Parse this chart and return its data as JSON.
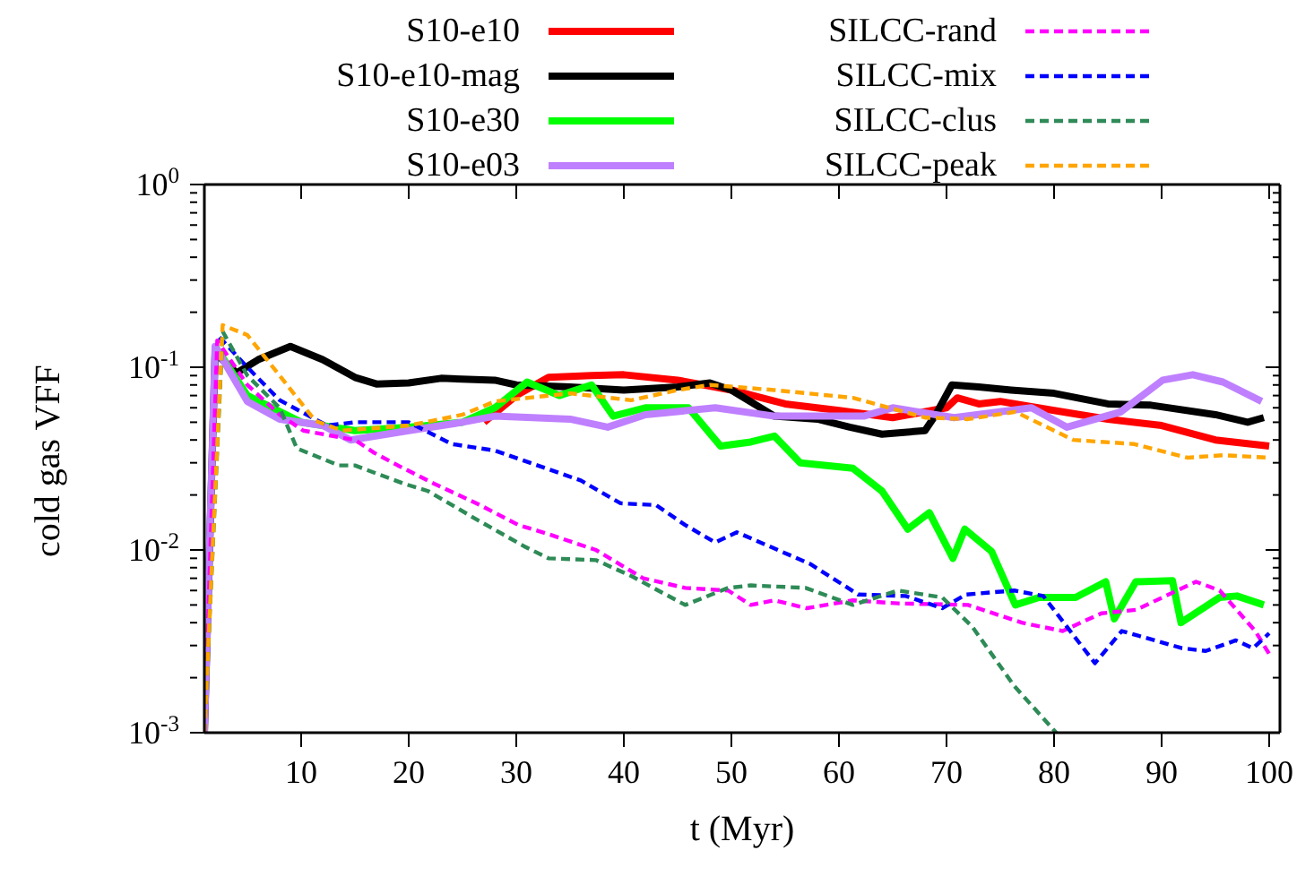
{
  "chart_data": {
    "type": "line",
    "xlabel": "t (Myr)",
    "ylabel": "cold gas VFF",
    "log": "y",
    "grid": false,
    "legend": "top",
    "marker": "none",
    "xlim": [
      1,
      101
    ],
    "xticks": [
      10,
      20,
      30,
      40,
      50,
      60,
      70,
      80,
      90,
      100
    ],
    "ylim": [
      0.001,
      1
    ],
    "yticks": [
      {
        "value": 0.001,
        "label": "10$^{-3}$"
      },
      {
        "value": 0.002,
        "label": null
      },
      {
        "value": 0.003,
        "label": null
      },
      {
        "value": 0.004,
        "label": null
      },
      {
        "value": 0.005,
        "label": null
      },
      {
        "value": 0.006,
        "label": null
      },
      {
        "value": 0.007,
        "label": null
      },
      {
        "value": 0.008,
        "label": null
      },
      {
        "value": 0.009,
        "label": null
      },
      {
        "value": 0.01,
        "label": "10$^{-2}$"
      },
      {
        "value": 0.02,
        "label": null
      },
      {
        "value": 0.03,
        "label": null
      },
      {
        "value": 0.04,
        "label": null
      },
      {
        "value": 0.05,
        "label": null
      },
      {
        "value": 0.06,
        "label": null
      },
      {
        "value": 0.07,
        "label": null
      },
      {
        "value": 0.08,
        "label": null
      },
      {
        "value": 0.09,
        "label": null
      },
      {
        "value": 0.1,
        "label": "10$^{-1}$"
      },
      {
        "value": 0.2,
        "label": null
      },
      {
        "value": 0.3,
        "label": null
      },
      {
        "value": 0.4,
        "label": null
      },
      {
        "value": 0.5,
        "label": null
      },
      {
        "value": 0.6,
        "label": null
      },
      {
        "value": 0.7,
        "label": null
      },
      {
        "value": 0.8,
        "label": null
      },
      {
        "value": 0.9,
        "label": null
      },
      {
        "value": 1,
        "label": "10$^{0}$"
      }
    ],
    "series": [
      {
        "name": "S10-e10",
        "color": "#ff0000",
        "line_style": "solid",
        "x": [
          27,
          30,
          33,
          37,
          40,
          45,
          50,
          55,
          60,
          65,
          70,
          71,
          73,
          75,
          80,
          85,
          90,
          95,
          100
        ],
        "values": [
          0.05,
          0.07,
          0.088,
          0.09,
          0.091,
          0.085,
          0.075,
          0.063,
          0.058,
          0.053,
          0.06,
          0.068,
          0.063,
          0.065,
          0.058,
          0.052,
          0.048,
          0.04,
          0.037
        ]
      },
      {
        "name": "S10-e10-mag",
        "color": "#000000",
        "line_style": "solid",
        "x": [
          1,
          2,
          4,
          6,
          9,
          12,
          15,
          17,
          20,
          23,
          28,
          30,
          35,
          40,
          45,
          48,
          50,
          54,
          58,
          61,
          64,
          68,
          69,
          70.5,
          73,
          76,
          80,
          85,
          89,
          95,
          98,
          99.5
        ],
        "values": [
          0.001,
          0.12,
          0.093,
          0.11,
          0.13,
          0.11,
          0.088,
          0.081,
          0.082,
          0.087,
          0.085,
          0.08,
          0.078,
          0.075,
          0.078,
          0.082,
          0.075,
          0.054,
          0.052,
          0.047,
          0.043,
          0.045,
          0.055,
          0.08,
          0.078,
          0.075,
          0.072,
          0.063,
          0.062,
          0.055,
          0.05,
          0.053
        ]
      },
      {
        "name": "S10-e30",
        "color": "#00ff00",
        "line_style": "solid",
        "x": [
          2,
          5,
          10,
          15,
          20,
          25,
          28,
          31,
          34,
          37,
          39,
          42,
          46,
          49,
          51.8,
          54,
          56.4,
          61.3,
          64,
          66.4,
          68.4,
          70.6,
          71.7,
          74.2,
          76.4,
          78.6,
          82,
          84.8,
          85.6,
          87.6,
          91,
          91.8,
          95.4,
          97,
          99.5
        ],
        "values": [
          0.13,
          0.07,
          0.05,
          0.045,
          0.047,
          0.05,
          0.06,
          0.083,
          0.07,
          0.08,
          0.054,
          0.06,
          0.06,
          0.037,
          0.039,
          0.042,
          0.03,
          0.028,
          0.021,
          0.013,
          0.016,
          0.009,
          0.013,
          0.0098,
          0.005,
          0.0055,
          0.0055,
          0.0067,
          0.0042,
          0.0067,
          0.0068,
          0.004,
          0.0055,
          0.0056,
          0.005
        ]
      },
      {
        "name": "S10-e03",
        "color": "#bf80ff",
        "line_style": "solid",
        "x": [
          1,
          2,
          5,
          8,
          12,
          14.6,
          20,
          25,
          28,
          35,
          38.5,
          42,
          48.5,
          54,
          62.3,
          65,
          70.7,
          77.9,
          81.2,
          86.2,
          90.1,
          92.9,
          95.7,
          99.3
        ],
        "values": [
          0.001,
          0.13,
          0.065,
          0.052,
          0.048,
          0.04,
          0.045,
          0.05,
          0.054,
          0.052,
          0.047,
          0.055,
          0.06,
          0.054,
          0.054,
          0.06,
          0.053,
          0.06,
          0.047,
          0.057,
          0.085,
          0.091,
          0.083,
          0.065
        ]
      },
      {
        "name": "SILCC-rand",
        "color": "#ff00ff",
        "line_style": "dashed",
        "x": [
          1,
          2.2,
          5,
          8,
          10.2,
          15,
          16.8,
          19,
          22.4,
          26.3,
          30.2,
          33,
          37.4,
          41.8,
          45.7,
          49.7,
          51.8,
          54,
          57,
          61.3,
          65.5,
          72,
          77,
          80.8,
          84.4,
          87.6,
          93.2,
          95.4,
          98.7,
          100
        ],
        "values": [
          0.001,
          0.14,
          0.08,
          0.055,
          0.045,
          0.04,
          0.034,
          0.029,
          0.023,
          0.018,
          0.0137,
          0.0122,
          0.01,
          0.007,
          0.0062,
          0.006,
          0.005,
          0.0053,
          0.0048,
          0.0053,
          0.0051,
          0.005,
          0.004,
          0.0036,
          0.0045,
          0.0047,
          0.0067,
          0.006,
          0.0036,
          0.0027
        ]
      },
      {
        "name": "SILCC-mix",
        "color": "#0000ff",
        "line_style": "dashed",
        "x": [
          2.4,
          5,
          8,
          12.4,
          15,
          20,
          24,
          28,
          36,
          39.7,
          43,
          45.7,
          48.5,
          50.5,
          57.3,
          61.8,
          66.2,
          69.6,
          71.8,
          76.3,
          79,
          83.8,
          86.3,
          91.9,
          94.1,
          96.9,
          98.5,
          100
        ],
        "values": [
          0.146,
          0.1,
          0.066,
          0.048,
          0.05,
          0.05,
          0.038,
          0.035,
          0.024,
          0.018,
          0.0176,
          0.0137,
          0.011,
          0.0125,
          0.0084,
          0.0057,
          0.0056,
          0.0048,
          0.0057,
          0.006,
          0.0056,
          0.0024,
          0.0036,
          0.0029,
          0.0028,
          0.0032,
          0.0029,
          0.0035
        ]
      },
      {
        "name": "SILCC-clus",
        "color": "#2e8b57",
        "line_style": "dashed",
        "x": [
          1,
          2.7,
          5,
          8,
          9.6,
          13.5,
          15,
          19.6,
          21.8,
          26.3,
          30.7,
          33,
          37.4,
          40.7,
          45.7,
          49.7,
          51.8,
          56.9,
          61.3,
          65.5,
          69.6,
          72.4,
          76.3,
          80.2
        ],
        "values": [
          0.001,
          0.157,
          0.09,
          0.06,
          0.036,
          0.029,
          0.029,
          0.023,
          0.021,
          0.0147,
          0.0105,
          0.009,
          0.0088,
          0.0072,
          0.005,
          0.0062,
          0.0064,
          0.0062,
          0.005,
          0.006,
          0.0055,
          0.0038,
          0.0018,
          0.001
        ]
      },
      {
        "name": "SILCC-peak",
        "color": "#ffa500",
        "line_style": "dashed",
        "x": [
          1,
          2.7,
          5,
          8,
          11.3,
          13.8,
          20,
          25,
          28,
          35,
          40.7,
          45,
          48,
          54,
          61.3,
          68,
          72,
          76.4,
          81.8,
          87.4,
          92.4,
          95.7,
          100
        ],
        "values": [
          0.001,
          0.17,
          0.15,
          0.09,
          0.051,
          0.045,
          0.048,
          0.055,
          0.065,
          0.072,
          0.066,
          0.075,
          0.08,
          0.075,
          0.068,
          0.053,
          0.052,
          0.057,
          0.04,
          0.038,
          0.032,
          0.033,
          0.032
        ]
      }
    ]
  }
}
